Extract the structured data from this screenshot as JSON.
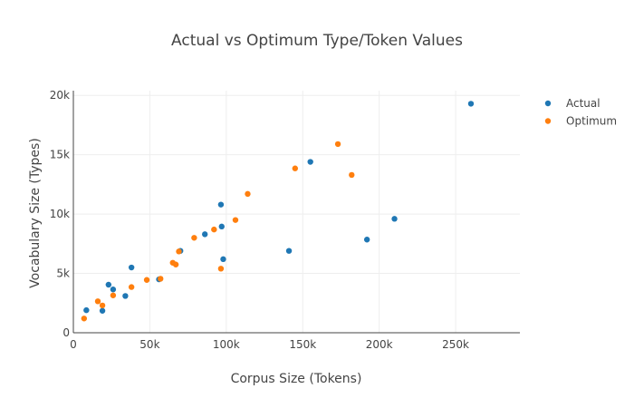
{
  "chart_data": {
    "type": "scatter",
    "title": "Actual vs Optimum Type/Token Values",
    "xlabel": "Corpus Size (Tokens)",
    "ylabel": "Vocabulary Size (Types)",
    "xlim": [
      0,
      292000
    ],
    "ylim": [
      0,
      20400
    ],
    "x_ticks": [
      {
        "value": 0,
        "label": "0"
      },
      {
        "value": 50000,
        "label": "50k"
      },
      {
        "value": 100000,
        "label": "100k"
      },
      {
        "value": 150000,
        "label": "150k"
      },
      {
        "value": 200000,
        "label": "200k"
      },
      {
        "value": 250000,
        "label": "250k"
      }
    ],
    "y_ticks": [
      {
        "value": 0,
        "label": "0"
      },
      {
        "value": 5000,
        "label": "5k"
      },
      {
        "value": 10000,
        "label": "10k"
      },
      {
        "value": 15000,
        "label": "15k"
      },
      {
        "value": 20000,
        "label": "20k"
      }
    ],
    "grid": true,
    "legend_position": "top-right",
    "series": [
      {
        "name": "Actual",
        "color": "#1f77b4",
        "points": [
          [
            8500,
            1900
          ],
          [
            19000,
            1850
          ],
          [
            23000,
            4050
          ],
          [
            26000,
            3650
          ],
          [
            34000,
            3100
          ],
          [
            38000,
            5500
          ],
          [
            56000,
            4500
          ],
          [
            70000,
            6900
          ],
          [
            86000,
            8300
          ],
          [
            96500,
            10800
          ],
          [
            97000,
            8950
          ],
          [
            98000,
            6200
          ],
          [
            141000,
            6900
          ],
          [
            155000,
            14400
          ],
          [
            192000,
            7850
          ],
          [
            210000,
            9600
          ],
          [
            260000,
            19300
          ]
        ]
      },
      {
        "name": "Optimum",
        "color": "#ff7f0e",
        "points": [
          [
            7000,
            1200
          ],
          [
            16000,
            2650
          ],
          [
            19000,
            2300
          ],
          [
            26000,
            3150
          ],
          [
            38000,
            3850
          ],
          [
            48000,
            4450
          ],
          [
            57000,
            4550
          ],
          [
            65000,
            5900
          ],
          [
            67000,
            5750
          ],
          [
            69000,
            6850
          ],
          [
            79000,
            8000
          ],
          [
            92000,
            8700
          ],
          [
            96500,
            5400
          ],
          [
            106000,
            9500
          ],
          [
            114000,
            11700
          ],
          [
            145000,
            13850
          ],
          [
            173000,
            15900
          ],
          [
            182000,
            13300
          ]
        ]
      }
    ]
  }
}
